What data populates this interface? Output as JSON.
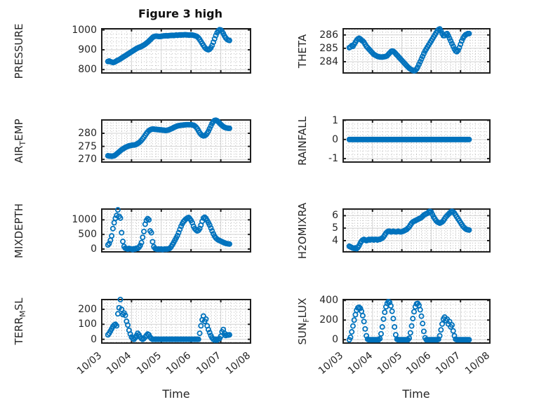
{
  "colors": {
    "marker": "#0072BD",
    "axis": "#1f1f1f",
    "grid_major": "#d2d2d2",
    "grid_minor": "#bfbfbf",
    "text": "#262626",
    "background": "#ffffff"
  },
  "chart_data": {
    "type": "scatter",
    "title": "Figure 3 high",
    "xlabel": "Time",
    "marker_style": "open-circle",
    "legend": "none",
    "grid": "major solid + minor dotted",
    "x_axis": {
      "tick_labels": [
        "10/03",
        "10/04",
        "10/05",
        "10/06",
        "10/07",
        "10/08"
      ],
      "range_days": [
        0,
        5
      ],
      "minor_divisions_per_day": 6
    },
    "sampling": {
      "start_day": 0.2083,
      "step_day": 0.041667,
      "n_points": 99
    },
    "subplots": [
      {
        "id": "pressure",
        "ylabel": "PRESSURE",
        "ylabel_parts": {
          "pre": "PRESSURE",
          "sub": "",
          "post": ""
        },
        "ylim": [
          783,
          1006
        ],
        "yticks": [
          800,
          900,
          1000
        ],
        "ytick_labels": [
          "800",
          "900",
          "1000"
        ],
        "y_minor_step": 20,
        "values": [
          841,
          843,
          840,
          838,
          836,
          837,
          840,
          844,
          847,
          850,
          854,
          858,
          862,
          866,
          870,
          874,
          878,
          882,
          886,
          890,
          894,
          898,
          902,
          906,
          909,
          912,
          914,
          917,
          920,
          924,
          928,
          933,
          938,
          944,
          950,
          956,
          962,
          966,
          968,
          969,
          968,
          967,
          967,
          968,
          969,
          970,
          970,
          971,
          970,
          971,
          972,
          972,
          973,
          972,
          973,
          974,
          973,
          974,
          975,
          974,
          975,
          975,
          976,
          975,
          975,
          974,
          974,
          975,
          974,
          973,
          971,
          969,
          966,
          960,
          952,
          942,
          932,
          922,
          913,
          906,
          902,
          900,
          903,
          910,
          922,
          938,
          955,
          972,
          986,
          996,
          1001,
          1000,
          993,
          982,
          970,
          960,
          953,
          949,
          947
        ]
      },
      {
        "id": "theta",
        "ylabel": "THETA",
        "ylabel_parts": {
          "pre": "THETA",
          "sub": "",
          "post": ""
        },
        "ylim": [
          283.16,
          286.46
        ],
        "yticks": [
          284,
          285,
          286
        ],
        "ytick_labels": [
          "284",
          "285",
          "286"
        ],
        "y_minor_step": 0.2,
        "values": [
          285.05,
          285.1,
          285.2,
          285.15,
          285.3,
          285.45,
          285.6,
          285.7,
          285.75,
          285.7,
          285.6,
          285.55,
          285.45,
          285.3,
          285.15,
          285.05,
          284.95,
          284.85,
          284.75,
          284.65,
          284.55,
          284.5,
          284.45,
          284.4,
          284.38,
          284.35,
          284.35,
          284.35,
          284.36,
          284.38,
          284.4,
          284.45,
          284.55,
          284.65,
          284.75,
          284.8,
          284.78,
          284.7,
          284.6,
          284.5,
          284.4,
          284.3,
          284.2,
          284.1,
          284.0,
          283.9,
          283.8,
          283.7,
          283.6,
          283.52,
          283.45,
          283.4,
          283.35,
          283.32,
          283.35,
          283.45,
          283.6,
          283.8,
          284.0,
          284.2,
          284.4,
          284.6,
          284.8,
          284.95,
          285.1,
          285.25,
          285.4,
          285.55,
          285.7,
          285.85,
          286.0,
          286.15,
          286.3,
          286.4,
          286.45,
          286.3,
          286.1,
          285.95,
          285.95,
          286.05,
          286.1,
          285.95,
          285.75,
          285.55,
          285.35,
          285.15,
          284.95,
          284.8,
          284.75,
          284.85,
          285.05,
          285.3,
          285.55,
          285.75,
          285.9,
          286.0,
          286.05,
          286.1,
          286.1
        ]
      },
      {
        "id": "air-temp",
        "ylabel": "AIR_TEMP",
        "ylabel_parts": {
          "pre": "AIR",
          "sub": "T",
          "post": "EMP"
        },
        "ylim": [
          269.0,
          285.1
        ],
        "yticks": [
          270,
          275,
          280
        ],
        "ytick_labels": [
          "270",
          "275",
          "280"
        ],
        "y_minor_step": 1,
        "values": [
          271.4,
          271.3,
          271.3,
          271.2,
          271.3,
          271.4,
          271.7,
          272.1,
          272.5,
          272.9,
          273.3,
          273.7,
          274.0,
          274.3,
          274.6,
          274.8,
          275.0,
          275.2,
          275.3,
          275.4,
          275.5,
          275.5,
          275.6,
          275.8,
          276.1,
          276.4,
          276.8,
          277.3,
          277.9,
          278.5,
          279.2,
          279.9,
          280.5,
          281.0,
          281.3,
          281.5,
          281.6,
          281.6,
          281.5,
          281.5,
          281.4,
          281.4,
          281.3,
          281.3,
          281.2,
          281.2,
          281.1,
          281.1,
          281.2,
          281.3,
          281.5,
          281.7,
          281.9,
          282.2,
          282.4,
          282.6,
          282.8,
          282.9,
          283.0,
          283.1,
          283.1,
          283.2,
          283.2,
          283.3,
          283.3,
          283.3,
          283.3,
          283.3,
          283.2,
          283.1,
          282.8,
          282.4,
          281.8,
          281.0,
          280.2,
          279.6,
          279.2,
          279.0,
          279.1,
          279.4,
          280.0,
          280.8,
          281.8,
          282.8,
          283.8,
          284.5,
          284.9,
          285.0,
          284.8,
          284.4,
          283.9,
          283.4,
          283.0,
          282.6,
          282.3,
          282.1,
          282.0,
          281.9,
          281.9
        ]
      },
      {
        "id": "rainfall",
        "ylabel": "RAINFALL",
        "ylabel_parts": {
          "pre": "RAINFALL",
          "sub": "",
          "post": ""
        },
        "ylim": [
          -1.18,
          1.02
        ],
        "yticks": [
          -1,
          0,
          1
        ],
        "ytick_labels": [
          "-1",
          "0",
          "1"
        ],
        "y_minor_step": 0.2,
        "values": [
          0,
          0,
          0,
          0,
          0,
          0,
          0,
          0,
          0,
          0,
          0,
          0,
          0,
          0,
          0,
          0,
          0,
          0,
          0,
          0,
          0,
          0,
          0,
          0,
          0,
          0,
          0,
          0,
          0,
          0,
          0,
          0,
          0,
          0,
          0,
          0,
          0,
          0,
          0,
          0,
          0,
          0,
          0,
          0,
          0,
          0,
          0,
          0,
          0,
          0,
          0,
          0,
          0,
          0,
          0,
          0,
          0,
          0,
          0,
          0,
          0,
          0,
          0,
          0,
          0,
          0,
          0,
          0,
          0,
          0,
          0,
          0,
          0,
          0,
          0,
          0,
          0,
          0,
          0,
          0,
          0,
          0,
          0,
          0,
          0,
          0,
          0,
          0,
          0,
          0,
          0,
          0,
          0,
          0,
          0,
          0,
          0,
          0,
          0
        ]
      },
      {
        "id": "mixdepth",
        "ylabel": "MIXDEPTH",
        "ylabel_parts": {
          "pre": "MIXDEPTH",
          "sub": "",
          "post": ""
        },
        "ylim": [
          -96,
          1368
        ],
        "yticks": [
          0,
          500,
          1000
        ],
        "ytick_labels": [
          "0",
          "500",
          "1000"
        ],
        "y_minor_step": 100,
        "values": [
          140,
          190,
          300,
          450,
          700,
          900,
          1050,
          1150,
          1340,
          1120,
          1060,
          560,
          260,
          90,
          30,
          10,
          0,
          20,
          10,
          0,
          -20,
          10,
          0,
          30,
          20,
          60,
          120,
          220,
          400,
          600,
          850,
          980,
          1040,
          1000,
          620,
          560,
          250,
          80,
          20,
          0,
          -10,
          0,
          -10,
          0,
          -20,
          -10,
          0,
          -10,
          0,
          10,
          30,
          80,
          150,
          220,
          300,
          380,
          460,
          560,
          670,
          780,
          870,
          940,
          990,
          1030,
          1060,
          1080,
          1040,
          980,
          900,
          780,
          700,
          650,
          620,
          640,
          700,
          820,
          950,
          1060,
          1090,
          1050,
          980,
          900,
          820,
          720,
          620,
          520,
          440,
          380,
          340,
          310,
          290,
          270,
          250,
          230,
          210,
          195,
          185,
          178,
          172
        ]
      },
      {
        "id": "h2omixra",
        "ylabel": "H2OMIXRA",
        "ylabel_parts": {
          "pre": "H2OMIXRA",
          "sub": "",
          "post": ""
        },
        "ylim": [
          3.1,
          6.53
        ],
        "yticks": [
          4,
          5,
          6
        ],
        "ytick_labels": [
          "4",
          "5",
          "6"
        ],
        "y_minor_step": 0.2,
        "values": [
          3.55,
          3.5,
          3.45,
          3.4,
          3.38,
          3.42,
          3.35,
          3.45,
          3.6,
          3.8,
          3.95,
          4.05,
          4.1,
          4.05,
          4.0,
          4.05,
          4.1,
          4.05,
          4.1,
          4.1,
          4.05,
          4.1,
          4.1,
          4.05,
          4.1,
          4.1,
          4.15,
          4.2,
          4.3,
          4.45,
          4.6,
          4.7,
          4.75,
          4.75,
          4.7,
          4.72,
          4.75,
          4.72,
          4.7,
          4.72,
          4.75,
          4.72,
          4.7,
          4.72,
          4.75,
          4.8,
          4.85,
          4.9,
          5.0,
          5.1,
          5.25,
          5.4,
          5.5,
          5.55,
          5.6,
          5.65,
          5.7,
          5.75,
          5.8,
          5.85,
          5.95,
          6.05,
          6.1,
          6.15,
          6.2,
          6.3,
          6.35,
          6.3,
          6.1,
          5.9,
          5.75,
          5.6,
          5.5,
          5.45,
          5.4,
          5.45,
          5.5,
          5.6,
          5.75,
          5.9,
          6.0,
          6.1,
          6.2,
          6.3,
          6.35,
          6.3,
          6.2,
          6.05,
          5.9,
          5.75,
          5.6,
          5.45,
          5.3,
          5.15,
          5.05,
          4.95,
          4.9,
          4.87,
          4.85
        ]
      },
      {
        "id": "terr-msl",
        "ylabel": "TERR_MSL",
        "ylabel_parts": {
          "pre": "TERR",
          "sub": "M",
          "post": "SL"
        },
        "ylim": [
          -25,
          265
        ],
        "yticks": [
          0,
          100,
          200
        ],
        "ytick_labels": [
          "0",
          "100",
          "200"
        ],
        "y_minor_step": 20,
        "values": [
          30,
          40,
          55,
          70,
          85,
          95,
          100,
          90,
          170,
          210,
          265,
          200,
          165,
          175,
          160,
          120,
          95,
          60,
          35,
          15,
          5,
          0,
          10,
          25,
          40,
          30,
          15,
          5,
          0,
          5,
          15,
          25,
          35,
          30,
          15,
          5,
          0,
          0,
          0,
          0,
          0,
          0,
          0,
          0,
          0,
          0,
          0,
          0,
          0,
          0,
          0,
          0,
          0,
          0,
          0,
          0,
          0,
          0,
          0,
          0,
          0,
          0,
          0,
          0,
          0,
          0,
          0,
          0,
          0,
          0,
          0,
          0,
          0,
          0,
          40,
          90,
          130,
          155,
          120,
          135,
          90,
          65,
          45,
          25,
          10,
          0,
          -5,
          0,
          -5,
          0,
          5,
          20,
          50,
          65,
          40,
          25,
          30,
          28,
          30
        ]
      },
      {
        "id": "sun-flux",
        "ylabel": "SUN_FLUX",
        "ylabel_parts": {
          "pre": "SUN",
          "sub": "F",
          "post": "LUX"
        },
        "ylim": [
          -34,
          409
        ],
        "yticks": [
          0,
          200,
          400
        ],
        "ytick_labels": [
          "0",
          "200",
          "400"
        ],
        "y_minor_step": 40,
        "values": [
          0,
          25,
          80,
          140,
          200,
          255,
          300,
          325,
          330,
          320,
          290,
          245,
          185,
          110,
          40,
          5,
          0,
          0,
          0,
          0,
          0,
          0,
          0,
          0,
          0,
          10,
          60,
          130,
          210,
          280,
          335,
          370,
          388,
          380,
          345,
          290,
          215,
          130,
          50,
          5,
          0,
          0,
          0,
          0,
          0,
          0,
          0,
          0,
          0,
          15,
          70,
          140,
          215,
          285,
          335,
          365,
          370,
          350,
          305,
          240,
          165,
          85,
          20,
          0,
          0,
          0,
          0,
          0,
          0,
          0,
          0,
          0,
          0,
          5,
          40,
          100,
          160,
          210,
          230,
          195,
          210,
          160,
          185,
          130,
          150,
          90,
          40,
          5,
          0,
          0,
          0,
          0,
          0,
          0,
          0,
          0,
          0,
          0,
          0
        ]
      }
    ]
  }
}
